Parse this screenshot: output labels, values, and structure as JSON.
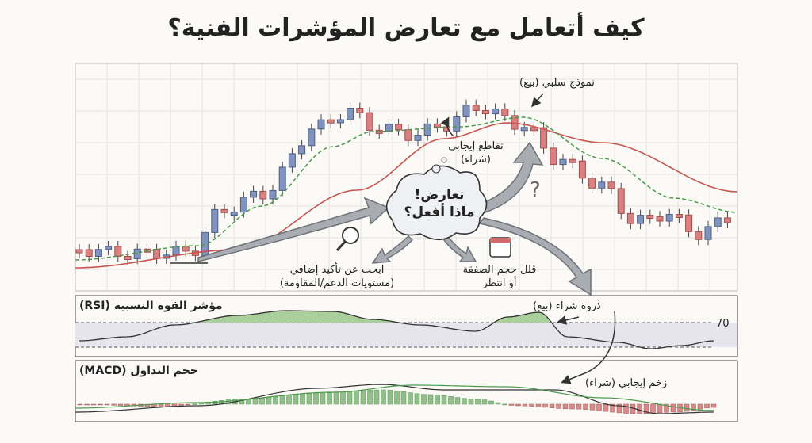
{
  "header": {
    "title": "كيف أتعامل مع تعارض المؤشرات الفنية؟"
  },
  "price_panel": {
    "bearish_pattern": "نموذج سلبي (بيع)",
    "bullish_cross": [
      "تقاطع إيجابي",
      "(شراء)"
    ],
    "conflict": [
      "تعارض!",
      "ماذا أفعل؟"
    ],
    "question_mark": "?",
    "option_confirm": [
      "ابحث عن تأكيد إضافي",
      "(مستويات الدعم/المقاومة)"
    ],
    "option_reduce": [
      "قلل حجم الصفقة",
      "أو انتظر"
    ]
  },
  "rsi_panel": {
    "title": "مؤشر القوة النسبية (RSI)",
    "level": "70",
    "overbought": "ذروة شراء (بيع)"
  },
  "macd_panel": {
    "title": "حجم التداول (MACD)",
    "momentum": "زخم إيجابي (شراء)"
  }
}
